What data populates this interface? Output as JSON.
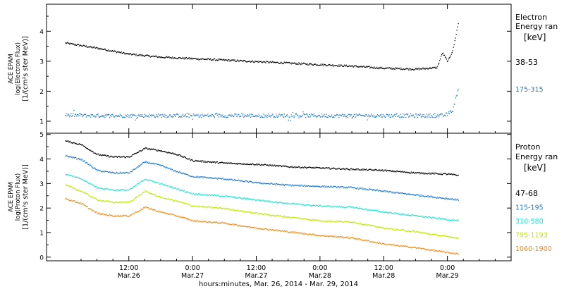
{
  "chart_data": [
    {
      "type": "scatter",
      "ylabel": [
        "ACE EPAM",
        "log(Electron Flux)",
        "[1/(cm²s ster MeV)]"
      ],
      "ylim": [
        0.6,
        4.9
      ],
      "yticks": [
        1,
        2,
        3,
        4
      ],
      "legend_title": [
        "Electron",
        "Energy ran"
      ],
      "legend_unit": "[keV]",
      "grid": false,
      "x": [
        0,
        6,
        12,
        18,
        24,
        30,
        36,
        42,
        48,
        54,
        60,
        66,
        70,
        71,
        72,
        73,
        74
      ],
      "series": [
        {
          "name": "38-53",
          "color": "#000000",
          "values": [
            3.62,
            3.45,
            3.25,
            3.15,
            3.1,
            3.05,
            3.0,
            2.95,
            2.9,
            2.85,
            2.78,
            2.75,
            2.8,
            3.3,
            3.0,
            3.4,
            4.3
          ]
        },
        {
          "name": "175-315",
          "color": "#1f78d0",
          "values": [
            1.22,
            1.2,
            1.2,
            1.2,
            1.2,
            1.2,
            1.2,
            1.2,
            1.2,
            1.2,
            1.2,
            1.2,
            1.2,
            1.2,
            1.25,
            1.4,
            2.15
          ]
        }
      ]
    },
    {
      "type": "scatter",
      "ylabel": [
        "ACE EPAM",
        "log(Proton Flux)",
        "[1/(cm²s ster MeV)]"
      ],
      "ylim": [
        -0.15,
        5.05
      ],
      "yticks": [
        0,
        1,
        2,
        3,
        4,
        5
      ],
      "legend_title": [
        "Proton",
        "Energy ran"
      ],
      "legend_unit": "[keV]",
      "grid": false,
      "x": [
        0,
        3,
        6,
        9,
        12,
        15,
        18,
        21,
        24,
        30,
        36,
        42,
        48,
        54,
        60,
        66,
        72,
        74
      ],
      "series": [
        {
          "name": "47-68",
          "color": "#000000",
          "values": [
            4.75,
            4.6,
            4.2,
            4.1,
            4.1,
            4.45,
            4.35,
            4.2,
            3.95,
            3.85,
            3.8,
            3.7,
            3.65,
            3.6,
            3.55,
            3.45,
            3.4,
            3.35
          ]
        },
        {
          "name": "115-195",
          "color": "#1f78d0",
          "values": [
            4.15,
            4.0,
            3.55,
            3.45,
            3.45,
            3.9,
            3.75,
            3.5,
            3.3,
            3.2,
            3.05,
            2.95,
            2.9,
            2.85,
            2.7,
            2.55,
            2.4,
            2.35
          ]
        },
        {
          "name": "310-580",
          "color": "#1de5d0",
          "values": [
            3.4,
            3.2,
            2.85,
            2.75,
            2.75,
            3.2,
            3.0,
            2.8,
            2.6,
            2.5,
            2.35,
            2.2,
            2.1,
            2.05,
            1.85,
            1.7,
            1.55,
            1.5
          ]
        },
        {
          "name": "795-1193",
          "color": "#bfe800",
          "values": [
            2.95,
            2.7,
            2.35,
            2.25,
            2.25,
            2.7,
            2.45,
            2.3,
            2.1,
            2.0,
            1.8,
            1.65,
            1.5,
            1.45,
            1.2,
            1.05,
            0.85,
            0.8
          ]
        },
        {
          "name": "1060-1900",
          "color": "#f08a16",
          "values": [
            2.4,
            2.2,
            1.8,
            1.7,
            1.7,
            2.05,
            1.85,
            1.7,
            1.5,
            1.4,
            1.2,
            1.05,
            0.9,
            0.8,
            0.55,
            0.4,
            0.2,
            0.15
          ]
        }
      ]
    }
  ],
  "x_axis": {
    "xlim": [
      -3.5,
      84
    ],
    "ticks": [
      {
        "t": 12,
        "top": "12:00",
        "bottom": "Mar.26"
      },
      {
        "t": 24,
        "top": "0:00",
        "bottom": "Mar.27"
      },
      {
        "t": 36,
        "top": "12:00",
        "bottom": "Mar.27"
      },
      {
        "t": 48,
        "top": "0:00",
        "bottom": "Mar.28"
      },
      {
        "t": 60,
        "top": "12:00",
        "bottom": "Mar.28"
      },
      {
        "t": 72,
        "top": "0:00",
        "bottom": "Mar.29"
      }
    ],
    "label": "hours:minutes, Mar. 26, 2014 - Mar. 29, 2014"
  }
}
